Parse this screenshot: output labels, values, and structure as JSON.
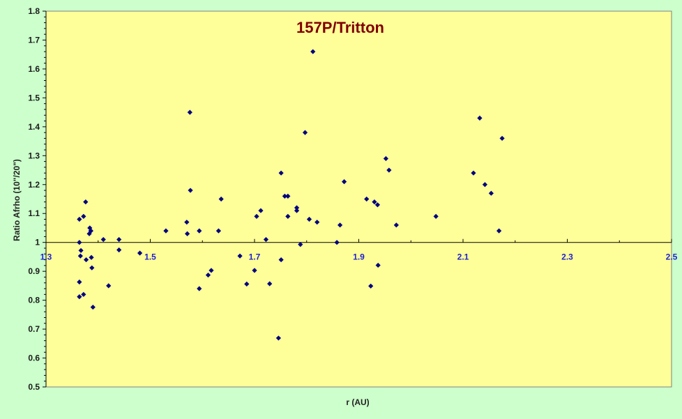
{
  "chart_data": {
    "type": "scatter",
    "title": "157P/Tritton",
    "xlabel": "r (AU)",
    "ylabel": "Ratio Afrho  (10\"/20\")",
    "xlim": [
      1.3,
      2.5
    ],
    "ylim": [
      0.5,
      1.8
    ],
    "x_ticks": [
      "1.3",
      "1.5",
      "1.7",
      "1.9",
      "2.1",
      "2.3",
      "2.5"
    ],
    "y_ticks": [
      "0.5",
      "0.6",
      "0.7",
      "0.8",
      "0.9",
      "1",
      "1.1",
      "1.2",
      "1.3",
      "1.4",
      "1.5",
      "1.6",
      "1.7",
      "1.8"
    ],
    "x_axis_crosses_at": 1.0,
    "grid": false,
    "colors": {
      "plot_area": "#ffff99",
      "background": "#ccffcc",
      "marker": "#000080",
      "title": "#800000",
      "x_tick_labels": "#1f1fd0"
    },
    "points": [
      [
        1.364,
        1.08
      ],
      [
        1.364,
        1.0
      ],
      [
        1.364,
        0.863
      ],
      [
        1.364,
        0.812
      ],
      [
        1.366,
        0.953
      ],
      [
        1.367,
        0.972
      ],
      [
        1.372,
        1.09
      ],
      [
        1.372,
        0.82
      ],
      [
        1.376,
        1.14
      ],
      [
        1.377,
        0.94
      ],
      [
        1.383,
        1.03
      ],
      [
        1.384,
        1.05
      ],
      [
        1.386,
        1.04
      ],
      [
        1.386,
        1.04
      ],
      [
        1.387,
        0.948
      ],
      [
        1.388,
        0.912
      ],
      [
        1.39,
        0.776
      ],
      [
        1.41,
        1.01
      ],
      [
        1.42,
        0.85
      ],
      [
        1.44,
        1.01
      ],
      [
        1.44,
        0.974
      ],
      [
        1.48,
        0.963
      ],
      [
        1.53,
        1.04
      ],
      [
        1.57,
        1.07
      ],
      [
        1.571,
        1.03
      ],
      [
        1.576,
        1.45
      ],
      [
        1.577,
        1.18
      ],
      [
        1.594,
        1.04
      ],
      [
        1.594,
        0.84
      ],
      [
        1.611,
        0.887
      ],
      [
        1.617,
        0.903
      ],
      [
        1.631,
        1.04
      ],
      [
        1.636,
        1.15
      ],
      [
        1.672,
        0.953
      ],
      [
        1.685,
        0.856
      ],
      [
        1.7,
        0.903
      ],
      [
        1.704,
        1.09
      ],
      [
        1.712,
        1.11
      ],
      [
        1.722,
        1.01
      ],
      [
        1.729,
        0.857
      ],
      [
        1.746,
        0.669
      ],
      [
        1.751,
        1.24
      ],
      [
        1.751,
        0.94
      ],
      [
        1.758,
        1.16
      ],
      [
        1.764,
        1.16
      ],
      [
        1.764,
        1.09
      ],
      [
        1.781,
        1.11
      ],
      [
        1.781,
        1.12
      ],
      [
        1.788,
        0.993
      ],
      [
        1.797,
        1.38
      ],
      [
        1.805,
        1.08
      ],
      [
        1.812,
        1.66
      ],
      [
        1.82,
        1.07
      ],
      [
        1.858,
        1.0
      ],
      [
        1.864,
        1.06
      ],
      [
        1.872,
        1.21
      ],
      [
        1.915,
        1.15
      ],
      [
        1.923,
        0.849
      ],
      [
        1.93,
        1.14
      ],
      [
        1.936,
        1.13
      ],
      [
        1.937,
        0.921
      ],
      [
        1.952,
        1.29
      ],
      [
        1.958,
        1.25
      ],
      [
        1.972,
        1.06
      ],
      [
        2.048,
        1.09
      ],
      [
        2.12,
        1.24
      ],
      [
        2.132,
        1.43
      ],
      [
        2.142,
        1.2
      ],
      [
        2.154,
        1.17
      ],
      [
        2.169,
        1.04
      ],
      [
        2.175,
        1.36
      ]
    ]
  }
}
